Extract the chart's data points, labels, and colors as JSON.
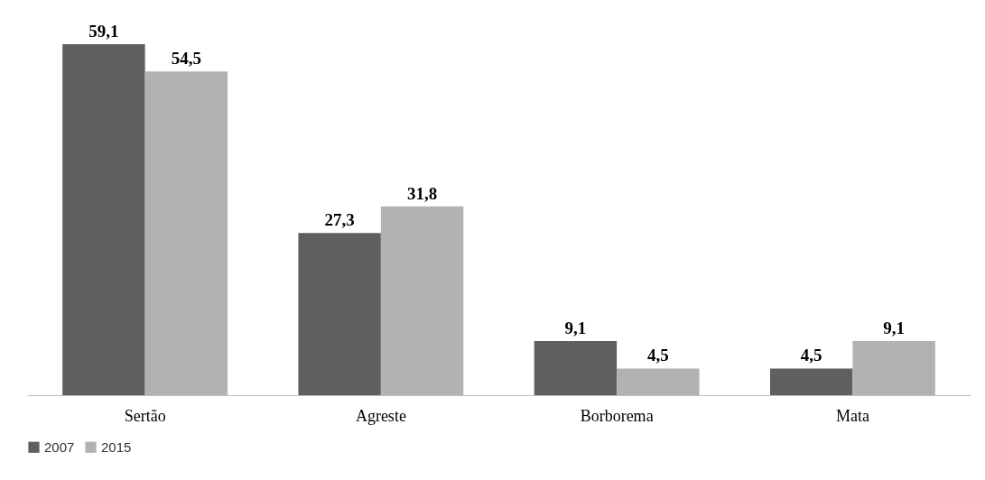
{
  "chart_data": {
    "type": "bar",
    "categories": [
      "Sertão",
      "Agreste",
      "Borborema",
      "Mata"
    ],
    "series": [
      {
        "name": "2007",
        "color": "#5f5f5f",
        "values": [
          59.1,
          27.3,
          9.1,
          4.5
        ],
        "value_labels": [
          "59,1",
          "27,3",
          "9,1",
          "4,5"
        ]
      },
      {
        "name": "2015",
        "color": "#b2b2b2",
        "values": [
          54.5,
          31.8,
          4.5,
          9.1
        ],
        "value_labels": [
          "54,5",
          "31,8",
          "4,5",
          "9,1"
        ]
      }
    ],
    "legend": "bottom",
    "grid": false
  }
}
